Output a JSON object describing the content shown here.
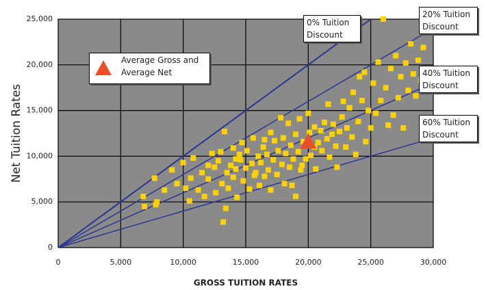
{
  "chart_data": {
    "type": "scatter",
    "x_label": "GROSS TUITION RATES",
    "y_label": "Net Tuition Rates",
    "xlim": [
      0,
      30000
    ],
    "ylim": [
      0,
      25000
    ],
    "xticks": [
      0,
      {
        "value": 5000,
        "label": "5,000"
      },
      {
        "value": 10000,
        "label": "10,000"
      },
      {
        "value": 15000,
        "label": "15,000"
      },
      {
        "value": 20000,
        "label": "20,000"
      },
      {
        "value": 25000,
        "label": "25,000"
      },
      {
        "value": 30000,
        "label": "30,000"
      }
    ],
    "yticks": [
      0,
      {
        "value": 5000,
        "label": "5,000"
      },
      {
        "value": 10000,
        "label": "10,000"
      },
      {
        "value": 15000,
        "label": "15,000"
      },
      {
        "value": 20000,
        "label": "20,000"
      },
      {
        "value": 25000,
        "label": "25,000"
      }
    ],
    "grid": true,
    "series": [
      {
        "color": "#ffd200",
        "marker": "square",
        "x": [
          6800,
          6900,
          7800,
          7900,
          7700,
          8500,
          9100,
          9500,
          10000,
          10200,
          10600,
          10500,
          10800,
          11200,
          11500,
          11700,
          12000,
          12000,
          12300,
          12500,
          12600,
          12800,
          13000,
          13100,
          13200,
          13300,
          13400,
          13500,
          13600,
          13800,
          14000,
          14000,
          14200,
          14300,
          14500,
          14600,
          14700,
          14800,
          15000,
          15100,
          15300,
          15500,
          15600,
          15700,
          15800,
          16000,
          16100,
          16200,
          16400,
          16500,
          16700,
          16800,
          17000,
          17000,
          17200,
          17300,
          17500,
          17600,
          17800,
          17900,
          18000,
          18100,
          18200,
          18400,
          18500,
          18600,
          18700,
          18800,
          19000,
          19000,
          19200,
          19300,
          19400,
          19600,
          19800,
          20000,
          20100,
          20200,
          20500,
          20600,
          20800,
          21000,
          21100,
          21300,
          21500,
          21600,
          21700,
          21900,
          22000,
          22200,
          22300,
          22500,
          22700,
          22800,
          23000,
          23100,
          23300,
          23500,
          23600,
          23800,
          24000,
          24100,
          24300,
          24500,
          24600,
          24800,
          25000,
          25200,
          25400,
          25600,
          25800,
          26000,
          26200,
          26400,
          26600,
          26800,
          27000,
          27200,
          27400,
          27600,
          27800,
          28000,
          28200,
          28400,
          28600,
          28800,
          29200,
          29000,
          20500,
          19500,
          16500,
          14200
        ],
        "values": [
          5600,
          4500,
          4700,
          5000,
          7600,
          6300,
          8500,
          7000,
          9300,
          6500,
          7600,
          5100,
          9800,
          6300,
          8200,
          5600,
          9000,
          7500,
          10300,
          8800,
          6000,
          9500,
          10500,
          7000,
          2800,
          12700,
          4300,
          8200,
          6500,
          9000,
          10900,
          7700,
          8600,
          5500,
          10200,
          9600,
          11500,
          7300,
          8700,
          10600,
          6400,
          9200,
          12000,
          7900,
          8200,
          10000,
          6800,
          9300,
          11000,
          7800,
          10200,
          8500,
          12600,
          6300,
          9600,
          11700,
          8000,
          10600,
          14200,
          9100,
          12000,
          7000,
          10300,
          13600,
          8800,
          11200,
          6800,
          9700,
          12400,
          5600,
          10500,
          14100,
          8500,
          11600,
          9700,
          14700,
          12600,
          10100,
          13200,
          8600,
          11500,
          12800,
          10600,
          13700,
          11900,
          15700,
          9900,
          12400,
          13500,
          11100,
          8800,
          12700,
          14300,
          16000,
          11000,
          13100,
          15300,
          12100,
          17000,
          10200,
          13800,
          18700,
          16100,
          19200,
          11600,
          15000,
          13100,
          18000,
          14700,
          20300,
          16100,
          25000,
          17500,
          13400,
          19600,
          14500,
          21000,
          16400,
          18700,
          13100,
          20200,
          17200,
          22300,
          19000,
          16600,
          20500,
          21900,
          18300,
          11000,
          9000,
          11800,
          9700
        ]
      },
      {
        "name": "Average Gross and Average Net",
        "color": "#e8502a",
        "marker": "triangle",
        "x": [
          20000
        ],
        "values": [
          11500
        ]
      }
    ],
    "reference_lines": [
      {
        "label": "0% Tuition Discount",
        "discount": 0
      },
      {
        "label": "20% Tuition Discount",
        "discount": 20
      },
      {
        "label": "40% Tuition Discount",
        "discount": 40
      },
      {
        "label": "60% Tuition Discount",
        "discount": 60
      }
    ]
  }
}
